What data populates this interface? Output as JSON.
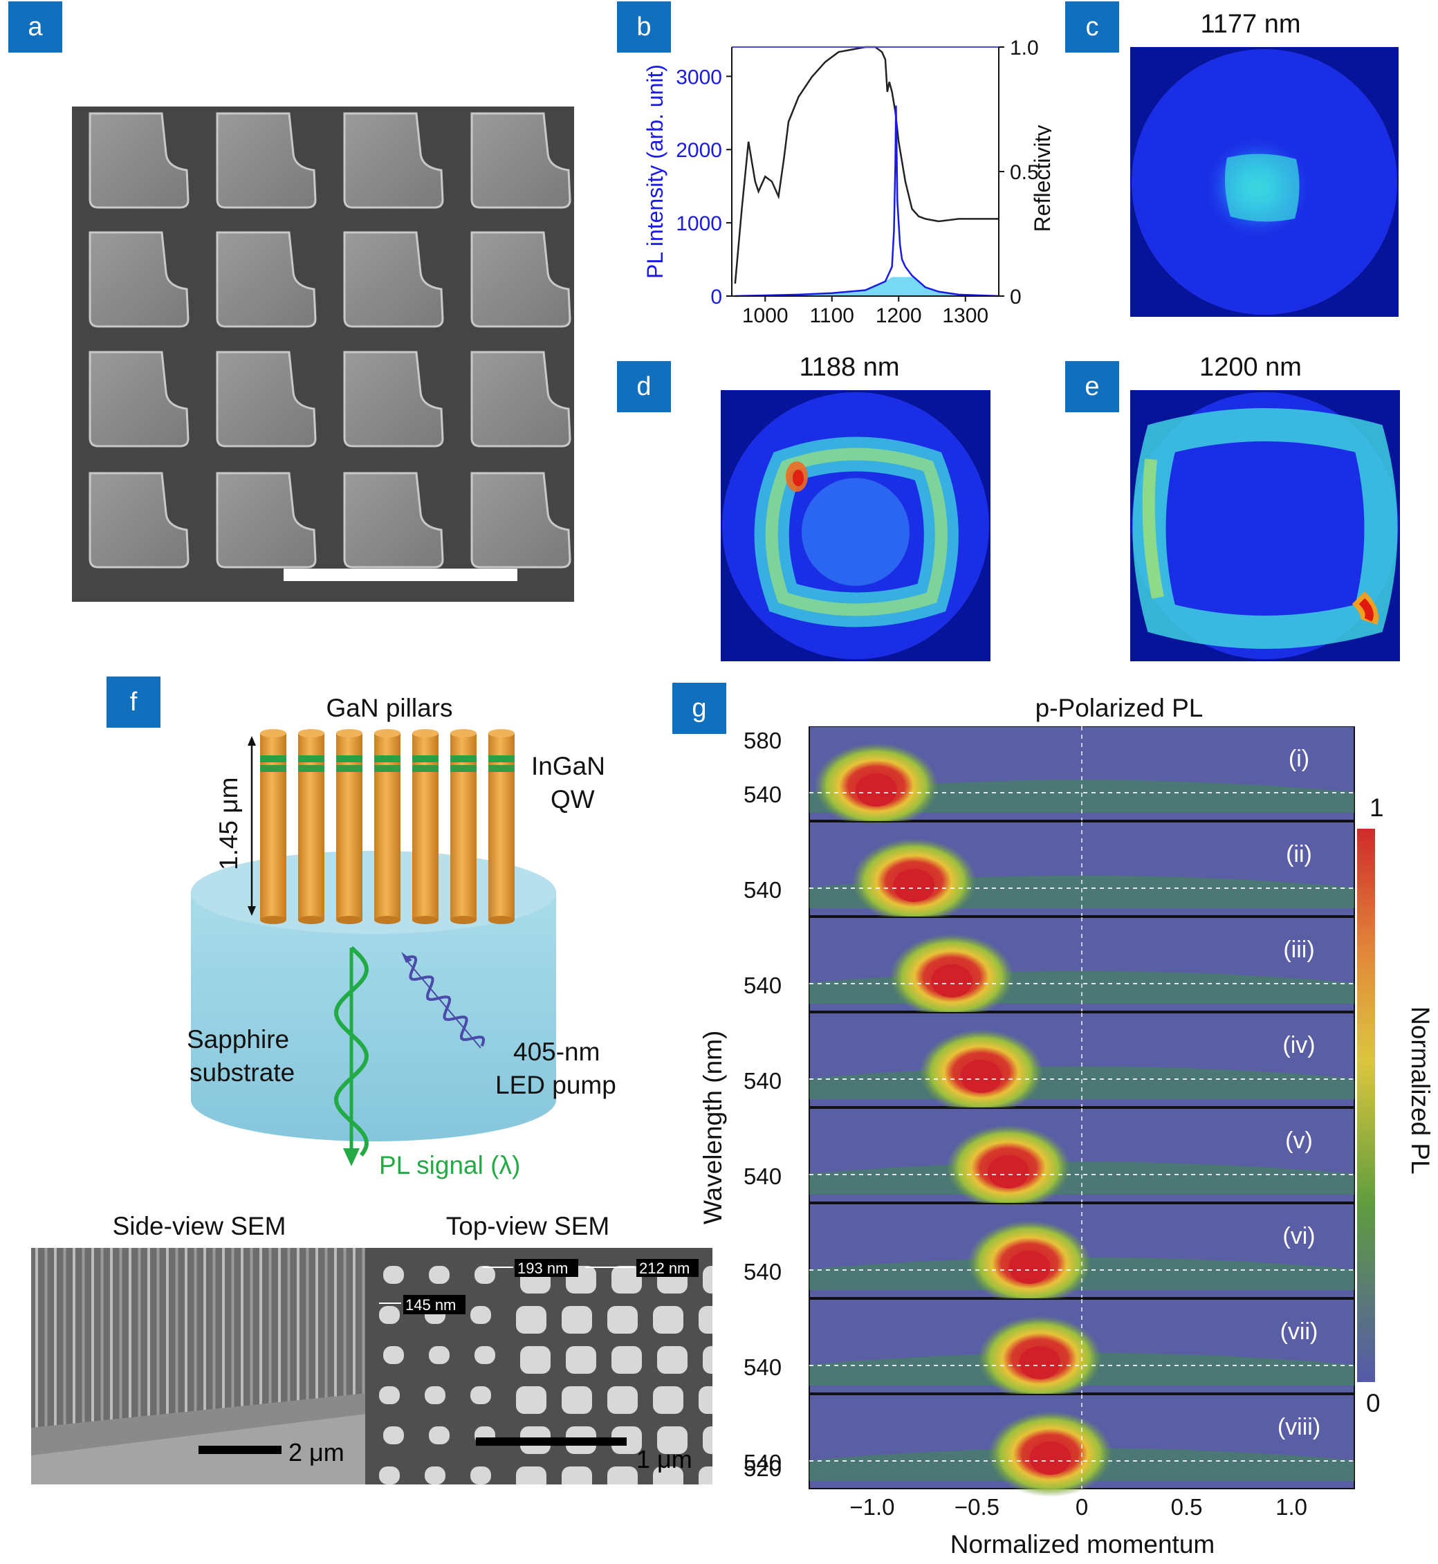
{
  "panels": {
    "a": {
      "label": "a"
    },
    "b": {
      "label": "b"
    },
    "c": {
      "label": "c",
      "title": "1177 nm"
    },
    "d": {
      "label": "d",
      "title": "1188 nm"
    },
    "e": {
      "label": "e",
      "title": "1200 nm"
    },
    "f": {
      "label": "f"
    },
    "g": {
      "label": "g"
    }
  },
  "chart_b": {
    "type": "line",
    "ylabel_left": "PL intensity (arb. unit)",
    "ylabel_right": "Reflectivity",
    "x_ticks": [
      "1000",
      "1100",
      "1200",
      "1300"
    ],
    "y_left_ticks": [
      "0",
      "1000",
      "2000",
      "3000"
    ],
    "y_right_ticks": [
      "0",
      "0.5",
      "1.0"
    ],
    "xlim": [
      950,
      1350
    ],
    "ylim_left": [
      0,
      3400
    ],
    "ylim_right": [
      0,
      1.0
    ],
    "colors": {
      "pl": "#1a1ae6",
      "reflectivity": "#222222",
      "pl_fill": "#5fd3f3"
    }
  },
  "chart_data": {
    "type": "line",
    "series": [
      {
        "name": "",
        "axis": "right",
        "x": [
          955,
          965,
          975,
          985,
          990,
          1000,
          1010,
          1020,
          1028,
          1035,
          1050,
          1070,
          1090,
          1110,
          1130,
          1150,
          1165,
          1175,
          1180,
          1183,
          1186,
          1190,
          1195,
          1200,
          1210,
          1220,
          1230,
          1240,
          1260,
          1290,
          1320,
          1350
        ],
        "y": [
          0.05,
          0.35,
          0.62,
          0.46,
          0.42,
          0.48,
          0.46,
          0.4,
          0.55,
          0.7,
          0.8,
          0.88,
          0.94,
          0.98,
          0.99,
          1.0,
          1.0,
          0.98,
          0.95,
          0.82,
          0.86,
          0.82,
          0.74,
          0.62,
          0.46,
          0.35,
          0.32,
          0.31,
          0.3,
          0.31,
          0.31,
          0.31
        ]
      },
      {
        "name": "",
        "axis": "left",
        "x": [
          955,
          1000,
          1050,
          1100,
          1150,
          1180,
          1190,
          1193,
          1195,
          1196,
          1197,
          1198,
          1200,
          1202,
          1205,
          1210,
          1220,
          1230,
          1240,
          1260,
          1290,
          1350
        ],
        "y": [
          0,
          10,
          20,
          40,
          80,
          200,
          400,
          900,
          1800,
          2600,
          2000,
          1300,
          1000,
          700,
          500,
          400,
          280,
          200,
          120,
          60,
          20,
          0
        ]
      }
    ]
  },
  "panel_f": {
    "title": "GaN pillars",
    "qw_label_1": "InGaN",
    "qw_label_2": "QW",
    "height_label": "1.45 μm",
    "substrate_1": "Sapphire",
    "substrate_2": "substrate",
    "pump_1": "405-nm",
    "pump_2": "LED pump",
    "signal": "PL signal (λ)",
    "side_title": "Side-view SEM",
    "top_title": "Top-view SEM",
    "side_scale": "2 μm",
    "top_scale": "1 μm",
    "dim_1": "193 nm",
    "dim_2": "212 nm",
    "dim_3": "145 nm",
    "colors": {
      "pillar": "#e9a23c",
      "qw": "#2e9e46",
      "substrate": "#8ecfe3",
      "signal": "#22aa44",
      "pump": "#4a4aa8"
    }
  },
  "panel_g": {
    "title": "p-Polarized PL",
    "ylabel": "Wavelength (nm)",
    "xlabel": "Normalized momentum",
    "colorbar_label": "Normalized PL",
    "cb_max": "1",
    "cb_min": "0",
    "top_ticks": [
      "580",
      "540"
    ],
    "row_tick": "540",
    "bottom_tick": "520",
    "x_ticks": [
      "−1.0",
      "−0.5",
      "0",
      "0.5",
      "1.0"
    ],
    "rows": [
      {
        "label": "(i)",
        "peak_momentum": -0.98
      },
      {
        "label": "(ii)",
        "peak_momentum": -0.8
      },
      {
        "label": "(iii)",
        "peak_momentum": -0.62
      },
      {
        "label": "(iv)",
        "peak_momentum": -0.48
      },
      {
        "label": "(v)",
        "peak_momentum": -0.35
      },
      {
        "label": "(vi)",
        "peak_momentum": -0.25
      },
      {
        "label": "(vii)",
        "peak_momentum": -0.2
      },
      {
        "label": "(viii)",
        "peak_momentum": -0.15
      }
    ]
  }
}
